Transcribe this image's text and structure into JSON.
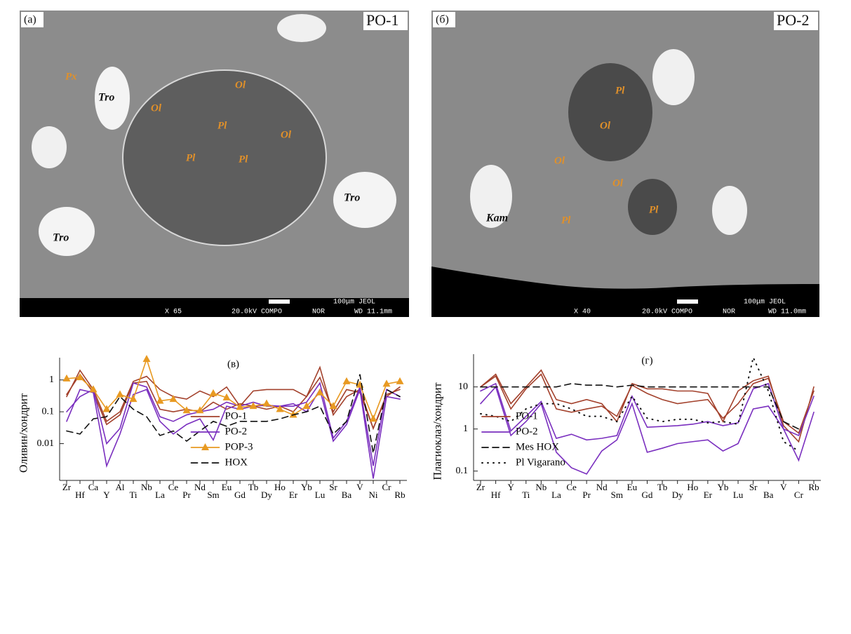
{
  "images": [
    {
      "panel": "(а)",
      "sample": "PO-1",
      "minerals": [
        "Px",
        "Tro",
        "Ol",
        "Ol",
        "Pl",
        "Ol",
        "Pl",
        "Pl",
        "Tro",
        "Tro"
      ],
      "info": [
        "100μm JEOL",
        "X 65",
        "20.0kV COMPO",
        "NOR",
        "WD 11.1mm"
      ]
    },
    {
      "panel": "(б)",
      "sample": "PO-2",
      "minerals": [
        "Pl",
        "Ol",
        "Ol",
        "Ol",
        "Kam",
        "Pl",
        "Pl"
      ],
      "info": [
        "100μm JEOL",
        "X 40",
        "20.0kV COMPO",
        "NOR",
        "WD 11.0mm"
      ]
    }
  ],
  "chart_data": [
    {
      "type": "line",
      "title": "(в)",
      "y_label": "Оливин/хондрит",
      "log_scale": true,
      "legend": "lower center",
      "categories": [
        "Zr",
        "Hf",
        "Ca",
        "Y",
        "Al",
        "Ti",
        "Nb",
        "La",
        "Ce",
        "Pr",
        "Nd",
        "Sm",
        "Eu",
        "Gd",
        "Tb",
        "Dy",
        "Ho",
        "Er",
        "Yb",
        "Lu",
        "Sr",
        "Ba",
        "V",
        "Ni",
        "Cr",
        "Rb"
      ],
      "ylim": [
        0.0007,
        5
      ],
      "yticks": [
        0.01,
        0.1,
        1
      ],
      "series": [
        {
          "name": "PO-1",
          "color": "#a3412c",
          "style": "solid",
          "values": [
            [
              0.3,
              2,
              0.5,
              0.05,
              0.1,
              0.9,
              1.3,
              0.5,
              0.3,
              0.25,
              0.45,
              0.3,
              0.6,
              0.15,
              0.45,
              0.5,
              0.5,
              0.5,
              0.3,
              2.5,
              0.08,
              0.3,
              0.5,
              0.03,
              0.3,
              0.6
            ],
            [
              0.35,
              1.5,
              0.4,
              0.04,
              0.08,
              0.8,
              0.9,
              0.12,
              0.1,
              0.12,
              0.1,
              0.2,
              0.12,
              0.18,
              0.15,
              0.12,
              0.15,
              0.1,
              0.3,
              1.2,
              0.1,
              0.5,
              0.4,
              0.03,
              0.35,
              0.5
            ]
          ]
        },
        {
          "name": "PO-2",
          "color": "#7a2fbf",
          "style": "solid",
          "values": [
            [
              0.05,
              0.5,
              0.4,
              0.002,
              0.02,
              0.35,
              0.5,
              0.05,
              0.02,
              0.04,
              0.06,
              0.013,
              0.15,
              0.12,
              0.15,
              0.16,
              0.15,
              0.18,
              0.1,
              0.5,
              0.012,
              0.04,
              0.5,
              0.0008,
              0.3,
              0.25
            ],
            [
              0.1,
              0.3,
              0.5,
              0.01,
              0.03,
              0.8,
              0.6,
              0.07,
              0.05,
              0.08,
              0.1,
              0.12,
              0.2,
              0.15,
              0.2,
              0.15,
              0.15,
              0.15,
              0.2,
              0.8,
              0.015,
              0.05,
              0.6,
              0.002,
              0.5,
              0.3
            ]
          ]
        },
        {
          "name": "POP-3",
          "color": "#e89a22",
          "style": "solid",
          "marker": "triangle",
          "values": [
            [
              1.1,
              1.2,
              0.5,
              0.12,
              0.35,
              0.25,
              4.5,
              0.22,
              0.25,
              0.11,
              0.11,
              0.38,
              0.28,
              0.14,
              0.15,
              0.18,
              0.12,
              0.08,
              0.15,
              0.4,
              0.15,
              0.9,
              0.7,
              0.06,
              0.75,
              0.9
            ]
          ]
        },
        {
          "name": "HOX",
          "color": "#111111",
          "style": "dashed",
          "values": [
            [
              0.025,
              0.02,
              0.06,
              0.07,
              0.3,
              0.12,
              0.07,
              0.018,
              0.025,
              0.012,
              0.025,
              0.05,
              0.035,
              0.05,
              0.05,
              0.05,
              0.06,
              0.08,
              0.1,
              0.15,
              0.02,
              0.05,
              1.5,
              0.005,
              0.5,
              0.3
            ]
          ]
        }
      ]
    },
    {
      "type": "line",
      "title": "(г)",
      "y_label": "Плагиоклаз/хондрит",
      "log_scale": true,
      "legend": "lower left",
      "categories": [
        "Zr",
        "Hf",
        "Y",
        "Ti",
        "Nb",
        "La",
        "Ce",
        "Pr",
        "Nd",
        "Sm",
        "Eu",
        "Gd",
        "Tb",
        "Dy",
        "Ho",
        "Er",
        "Yb",
        "Lu",
        "Sr",
        "Ba",
        "V",
        "Cr",
        "Rb"
      ],
      "ylim": [
        0.06,
        60
      ],
      "yticks": [
        0.1,
        1,
        10
      ],
      "series": [
        {
          "name": "PO-1",
          "color": "#a3412c",
          "style": "solid",
          "values": [
            [
              10,
              20,
              4,
              10,
              25,
              5,
              4,
              5,
              4,
              1.5,
              12,
              9,
              9,
              8,
              8,
              7,
              1.5,
              8,
              14,
              18,
              1.2,
              0.5,
              10
            ],
            [
              10,
              18,
              3,
              9,
              20,
              3,
              2.5,
              3,
              3.5,
              2,
              11,
              7,
              5,
              4,
              4.5,
              5,
              1.8,
              4,
              12,
              16,
              1.5,
              0.8,
              8
            ]
          ]
        },
        {
          "name": "PO-2",
          "color": "#7a2fbf",
          "style": "solid",
          "values": [
            [
              8,
              12,
              0.9,
              2,
              4.5,
              0.6,
              0.75,
              0.55,
              0.6,
              0.7,
              6,
              1.1,
              1.15,
              1.2,
              1.3,
              1.5,
              1.2,
              1.4,
              9,
              12,
              1,
              0.7,
              6
            ],
            [
              4,
              10,
              0.7,
              1.5,
              4,
              0.28,
              0.12,
              0.085,
              0.3,
              0.55,
              4,
              0.28,
              0.35,
              0.45,
              0.5,
              0.55,
              0.3,
              0.45,
              3,
              3.5,
              1,
              0.18,
              2.5
            ]
          ]
        },
        {
          "name": "Mes HOX",
          "color": "#111111",
          "style": "dashed",
          "values": [
            [
              10,
              10,
              10,
              10,
              10,
              10,
              12,
              11,
              11,
              10,
              11,
              10,
              10,
              10,
              10,
              10,
              10,
              10,
              10,
              10,
              1.5,
              1,
              null
            ]
          ]
        },
        {
          "name": "Pl Vigarano",
          "color": "#111111",
          "style": "dotted",
          "values": [
            [
              2.3,
              2,
              1.5,
              3,
              4,
              4,
              3,
              2,
              2,
              1.5,
              6,
              1.8,
              1.5,
              1.7,
              1.7,
              1.4,
              1.5,
              1.3,
              50,
              8,
              0.5,
              0.3,
              null
            ]
          ]
        }
      ]
    }
  ]
}
